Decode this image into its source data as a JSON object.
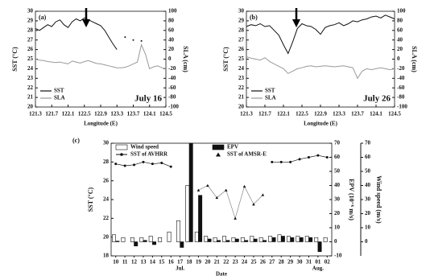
{
  "chart_data": [
    {
      "type": "line",
      "title": "(a)",
      "annotation": "July 16",
      "xlabel": "Longitude (E)",
      "ylabel": "SST (°C)",
      "y2label": "SLA (cm)",
      "legend": "lower left",
      "x": [
        121.3,
        121.4,
        121.5,
        121.6,
        121.7,
        121.8,
        121.9,
        122.0,
        122.1,
        122.2,
        122.3,
        122.4,
        122.5,
        122.6,
        122.7,
        122.8,
        122.9,
        123.0,
        123.1,
        123.2,
        123.3,
        123.4,
        123.5,
        123.6,
        123.7,
        123.8,
        123.9,
        124.0,
        124.1,
        124.2,
        124.3,
        124.4,
        124.5
      ],
      "series": [
        {
          "name": "SST",
          "color": "#111111",
          "values": [
            28.2,
            28.0,
            28.3,
            28.6,
            28.4,
            28.9,
            29.1,
            28.6,
            28.3,
            28.9,
            29.2,
            29.0,
            29.3,
            29.1,
            28.9,
            28.7,
            28.5,
            28.0,
            27.3,
            26.6,
            26.0,
            null,
            27.3,
            null,
            27.0,
            null,
            26.9,
            null,
            null,
            null,
            null,
            null,
            null
          ]
        },
        {
          "name": "SLA",
          "color": "#999999",
          "axis": "y2",
          "values": [
            0,
            -2,
            -3,
            -5,
            -6,
            -7,
            -6,
            -8,
            -10,
            -4,
            -6,
            -8,
            -5,
            -3,
            -6,
            -9,
            -10,
            -12,
            -14,
            -16,
            -18,
            -18,
            -17,
            -14,
            -10,
            -6,
            30,
            10,
            -20,
            -16,
            -14,
            -18,
            -20
          ]
        }
      ],
      "xlim": [
        121.3,
        124.5
      ],
      "xticks": [
        121.3,
        121.7,
        122.1,
        122.5,
        122.9,
        123.3,
        123.7,
        124.1,
        124.5
      ],
      "ylim": [
        20,
        30
      ],
      "yticks": [
        20,
        21,
        22,
        23,
        24,
        25,
        26,
        27,
        28,
        29,
        30
      ],
      "y2lim": [
        -100,
        100
      ],
      "y2ticks": [
        -100,
        -80,
        -60,
        -40,
        -20,
        0,
        20,
        40,
        60,
        80,
        100
      ]
    },
    {
      "type": "line",
      "title": "(b)",
      "annotation": "July 26",
      "xlabel": "Longitude (E)",
      "ylabel": "SST (°C)",
      "y2label": "SLA (cm)",
      "legend": "lower left",
      "x": [
        121.3,
        121.4,
        121.5,
        121.6,
        121.7,
        121.8,
        121.9,
        122.0,
        122.1,
        122.2,
        122.3,
        122.4,
        122.5,
        122.6,
        122.7,
        122.8,
        122.9,
        123.0,
        123.1,
        123.2,
        123.3,
        123.4,
        123.5,
        123.6,
        123.7,
        123.8,
        123.9,
        124.0,
        124.1,
        124.2,
        124.3,
        124.4,
        124.5
      ],
      "series": [
        {
          "name": "SST",
          "color": "#111111",
          "values": [
            28.4,
            28.6,
            28.5,
            28.7,
            28.4,
            28.5,
            28.0,
            27.5,
            26.5,
            25.6,
            26.8,
            28.2,
            28.7,
            28.5,
            28.4,
            28.1,
            27.6,
            28.3,
            28.5,
            28.6,
            28.8,
            28.5,
            28.7,
            29.0,
            28.9,
            29.1,
            29.2,
            29.4,
            29.5,
            29.3,
            29.6,
            29.4,
            29.2
          ]
        },
        {
          "name": "SLA",
          "color": "#999999",
          "axis": "y2",
          "values": [
            5,
            2,
            0,
            -2,
            3,
            -5,
            -10,
            -15,
            -20,
            -30,
            -25,
            -20,
            -18,
            -15,
            -14,
            -16,
            -15,
            -14,
            -15,
            -16,
            -15,
            -14,
            -16,
            -18,
            -40,
            -25,
            -20,
            -22,
            -20,
            -18,
            -20,
            -22,
            -20
          ]
        }
      ],
      "xlim": [
        121.3,
        124.5
      ],
      "xticks": [
        121.3,
        121.7,
        122.1,
        122.5,
        122.9,
        123.3,
        123.7,
        124.1,
        124.5
      ],
      "ylim": [
        20,
        30
      ],
      "yticks": [
        20,
        21,
        22,
        23,
        24,
        25,
        26,
        27,
        28,
        29,
        30
      ],
      "y2lim": [
        -100,
        100
      ],
      "y2ticks": [
        -100,
        -80,
        -60,
        -40,
        -20,
        0,
        20,
        40,
        60,
        80,
        100
      ]
    },
    {
      "type": "bar",
      "title": "(c)",
      "xlabel": "Date",
      "ylabel": "SST (°C)",
      "y2label": "EPV (10⁻⁶ m/s)",
      "y3label": "Wind speed (m/s)",
      "month_labels": [
        "Jul.",
        "Aug."
      ],
      "categories": [
        "10",
        "11",
        "12",
        "13",
        "14",
        "15",
        "16",
        "17",
        "18",
        "19",
        "20",
        "21",
        "22",
        "23",
        "24",
        "25",
        "26",
        "27",
        "28",
        "29",
        "30",
        "31",
        "01",
        "02"
      ],
      "series": [
        {
          "name": "Wind speed",
          "color": "#ffffff",
          "axis": "y3",
          "values": [
            5,
            3,
            3,
            3,
            4,
            3,
            7,
            15,
            40,
            7,
            4,
            3,
            4,
            3,
            3,
            4,
            3,
            4,
            5,
            4,
            4,
            4,
            3,
            3
          ]
        },
        {
          "name": "EPV",
          "color": "#111111",
          "axis": "y2",
          "values": [
            0.5,
            0,
            -3,
            1,
            -2,
            0,
            0,
            -4,
            70,
            33,
            2,
            1,
            1,
            2,
            1,
            2,
            1,
            3,
            4,
            3,
            3,
            3,
            -7,
            0
          ]
        },
        {
          "name": "SST of AVHRR",
          "color": "#111111",
          "marker": "circle",
          "values": [
            27.8,
            27.6,
            27.7,
            28.0,
            27.8,
            27.9,
            27.5,
            null,
            null,
            null,
            null,
            null,
            null,
            null,
            null,
            null,
            null,
            28.0,
            28.0,
            28.0,
            28.3,
            28.5,
            28.7,
            28.5
          ]
        },
        {
          "name": "SST of AMSR-E",
          "color": "#888888",
          "marker": "triangle",
          "values": [
            null,
            null,
            null,
            null,
            null,
            null,
            null,
            null,
            null,
            25.0,
            25.5,
            24.2,
            25.0,
            22.0,
            25.4,
            23.5,
            24.5,
            null,
            null,
            null,
            null,
            null,
            null,
            null
          ]
        }
      ],
      "ylim": [
        18,
        30
      ],
      "yticks": [
        18,
        20,
        22,
        24,
        26,
        28,
        30
      ],
      "y2lim": [
        -10,
        70
      ],
      "y2ticks": [
        -10,
        0,
        10,
        20,
        30,
        40,
        50,
        60,
        70
      ],
      "y3lim": [
        -10,
        70
      ],
      "y3ticks": [
        0,
        10,
        20,
        30,
        40,
        50,
        60,
        70
      ]
    }
  ]
}
